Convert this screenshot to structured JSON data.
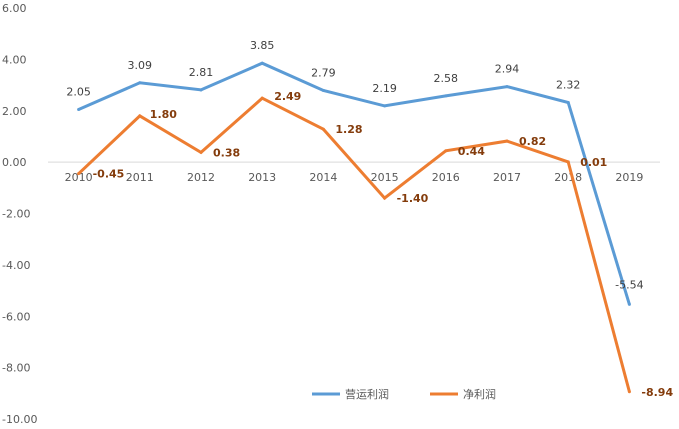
{
  "chart_data": {
    "type": "line",
    "title": "",
    "xlabel": "",
    "ylabel": "",
    "categories": [
      "2010",
      "2011",
      "2012",
      "2013",
      "2014",
      "2015",
      "2016",
      "2017",
      "2018",
      "2019"
    ],
    "ylim": [
      -10,
      6
    ],
    "yticks": [
      "6.00",
      "4.00",
      "2.00",
      "0.00",
      "-2.00",
      "-4.00",
      "-6.00",
      "-8.00",
      "-10.00"
    ],
    "grid": false,
    "legend_position": "bottom",
    "series": [
      {
        "name": "营运利润",
        "color": "#5b9bd5",
        "values": [
          2.05,
          3.09,
          2.81,
          3.85,
          2.79,
          2.19,
          2.58,
          2.94,
          2.32,
          -5.54
        ],
        "labels": [
          "2.05",
          "3.09",
          "2.81",
          "3.85",
          "2.79",
          "2.19",
          "2.58",
          "2.94",
          "2.32",
          "-5.54"
        ]
      },
      {
        "name": "净利润",
        "color": "#ed7d31",
        "values": [
          -0.45,
          1.8,
          0.38,
          2.49,
          1.28,
          -1.4,
          0.44,
          0.82,
          0.01,
          -8.94
        ],
        "labels": [
          "-0.45",
          "1.80",
          "0.38",
          "2.49",
          "1.28",
          "-1.40",
          "0.44",
          "0.82",
          "0.01",
          "-8.94"
        ]
      }
    ]
  }
}
